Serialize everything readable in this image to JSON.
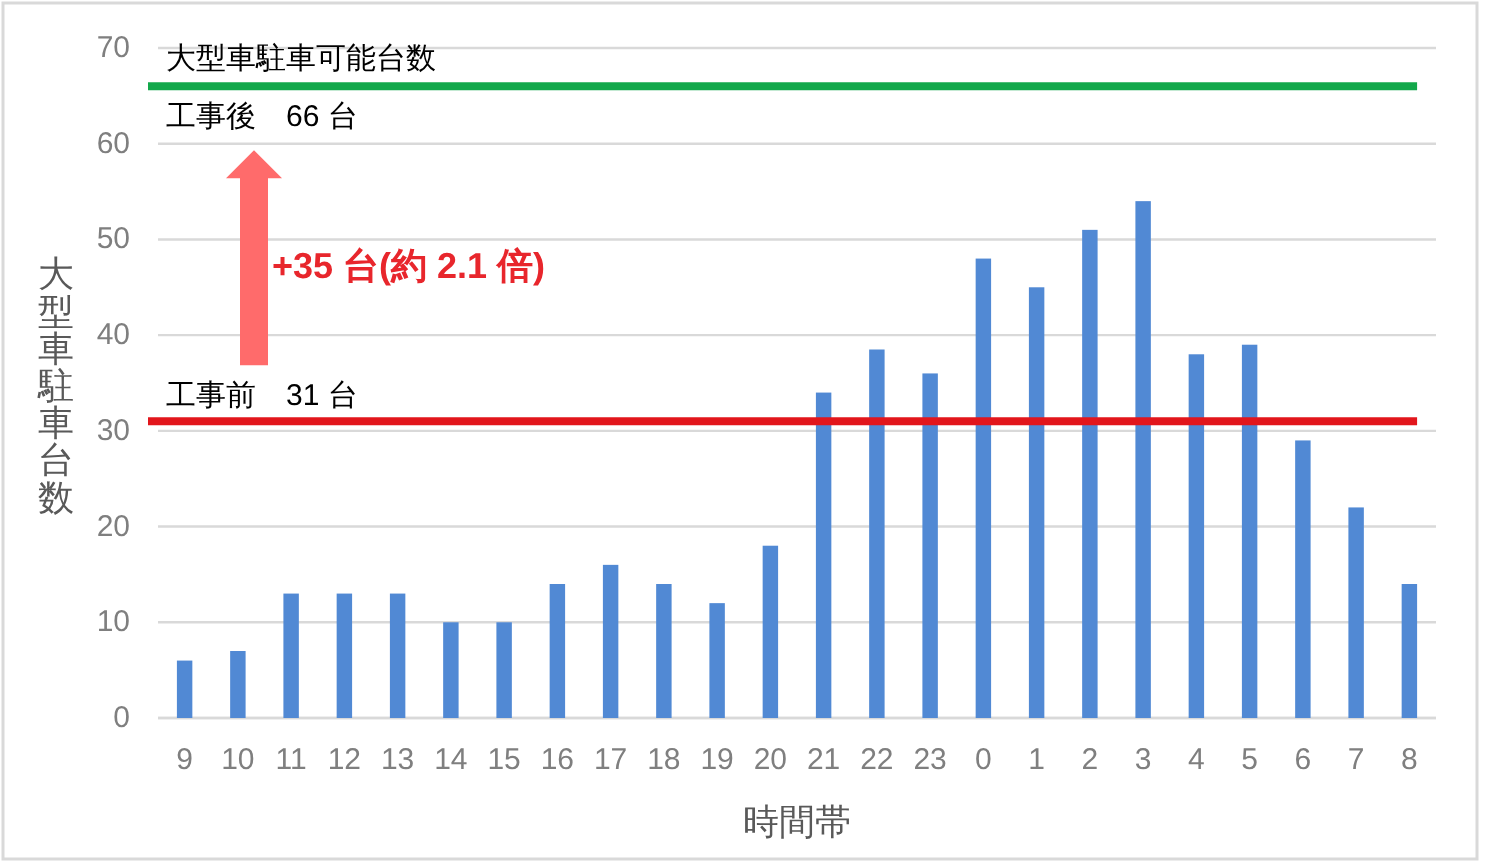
{
  "chart_data": {
    "type": "bar",
    "categories": [
      "9",
      "10",
      "11",
      "12",
      "13",
      "14",
      "15",
      "16",
      "17",
      "18",
      "19",
      "20",
      "21",
      "22",
      "23",
      "0",
      "1",
      "2",
      "3",
      "4",
      "5",
      "6",
      "7",
      "8"
    ],
    "values": [
      6,
      7,
      13,
      13,
      13,
      10,
      10,
      14,
      16,
      14,
      12,
      18,
      34,
      38.5,
      36,
      48,
      45,
      51,
      54,
      38,
      39,
      29,
      22,
      14
    ],
    "color": "#5189d4",
    "xlabel": "時間帯",
    "ylabel": "大型車駐車台数",
    "ylim": [
      0,
      70
    ],
    "yticks": [
      0,
      10,
      20,
      30,
      40,
      50,
      60,
      70
    ],
    "grid": "y",
    "ref_lines": [
      {
        "axis": "y",
        "value": 66,
        "label": "工事後　66 台",
        "color": "#13a84b"
      },
      {
        "axis": "y",
        "value": 31,
        "label": "工事前　31 台",
        "color": "#e2161c"
      }
    ],
    "annotations": [
      "大型車駐車可能台数",
      "+35 台(約 2.1 倍)"
    ]
  }
}
